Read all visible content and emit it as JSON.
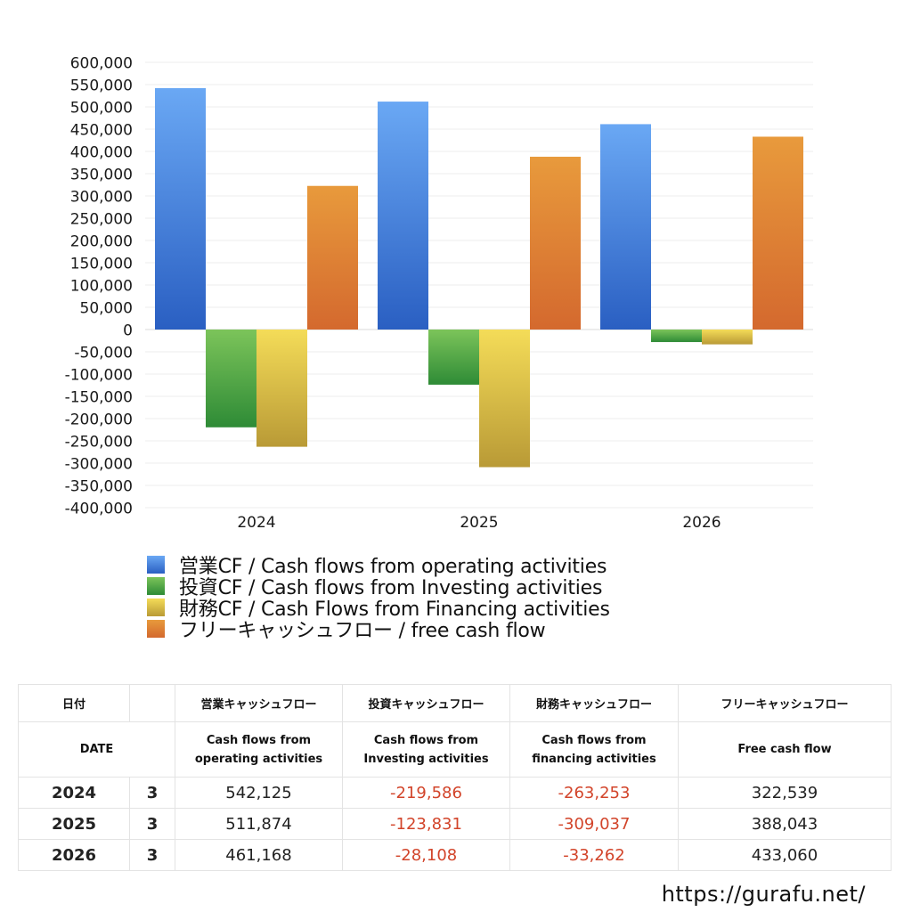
{
  "chart_data": {
    "type": "bar",
    "categories": [
      "2024",
      "2025",
      "2026"
    ],
    "ylim": [
      -400000,
      600000
    ],
    "ytick_step": 50000,
    "ytick_labels": [
      "600,000",
      "550,000",
      "500,000",
      "450,000",
      "400,000",
      "350,000",
      "300,000",
      "250,000",
      "200,000",
      "150,000",
      "100,000",
      "50,000",
      "0",
      "-50,000",
      "-100,000",
      "-150,000",
      "-200,000",
      "-250,000",
      "-300,000",
      "-350,000",
      "-400,000"
    ],
    "grid": true,
    "legend_placement": "bottom",
    "series": [
      {
        "name": "営業CF / Cash flows from operating activities",
        "values": [
          542125,
          511874,
          461168
        ],
        "color_top": "#6aa8f4",
        "color_bottom": "#2a5fc2"
      },
      {
        "name": "投資CF / Cash flows from Investing activities",
        "values": [
          -219586,
          -123831,
          -28108
        ],
        "color_top": "#7cc45a",
        "color_bottom": "#2e8b36"
      },
      {
        "name": "財務CF / Cash Flows from Financing activities",
        "values": [
          -263253,
          -309037,
          -33262
        ],
        "color_top": "#f4dc58",
        "color_bottom": "#b99a36"
      },
      {
        "name": "フリーキャッシュフロー / free cash flow",
        "values": [
          322539,
          388043,
          433060
        ],
        "color_top": "#e89a3c",
        "color_bottom": "#d4692e"
      }
    ]
  },
  "table": {
    "header_jp": [
      "日付",
      "",
      "営業キャッシュフロー",
      "投資キャッシュフロー",
      "財務キャッシュフロー",
      "フリーキャッシュフロー"
    ],
    "header_en": {
      "date": "DATE",
      "operating": [
        "Cash flows from",
        "operating activities"
      ],
      "investing": [
        "Cash flows from",
        "Investing activities"
      ],
      "financing": [
        "Cash flows from",
        "financing activities"
      ],
      "free": "Free cash flow"
    },
    "rows": [
      {
        "year": "2024",
        "month": "3",
        "operating": "542,125",
        "investing": "-219,586",
        "financing": "-263,253",
        "free": "322,539"
      },
      {
        "year": "2025",
        "month": "3",
        "operating": "511,874",
        "investing": "-123,831",
        "financing": "-309,037",
        "free": "388,043"
      },
      {
        "year": "2026",
        "month": "3",
        "operating": "461,168",
        "investing": "-28,108",
        "financing": "-33,262",
        "free": "433,060"
      }
    ],
    "negative_color": "#d2442a"
  },
  "footer": {
    "url": "https://gurafu.net/"
  }
}
